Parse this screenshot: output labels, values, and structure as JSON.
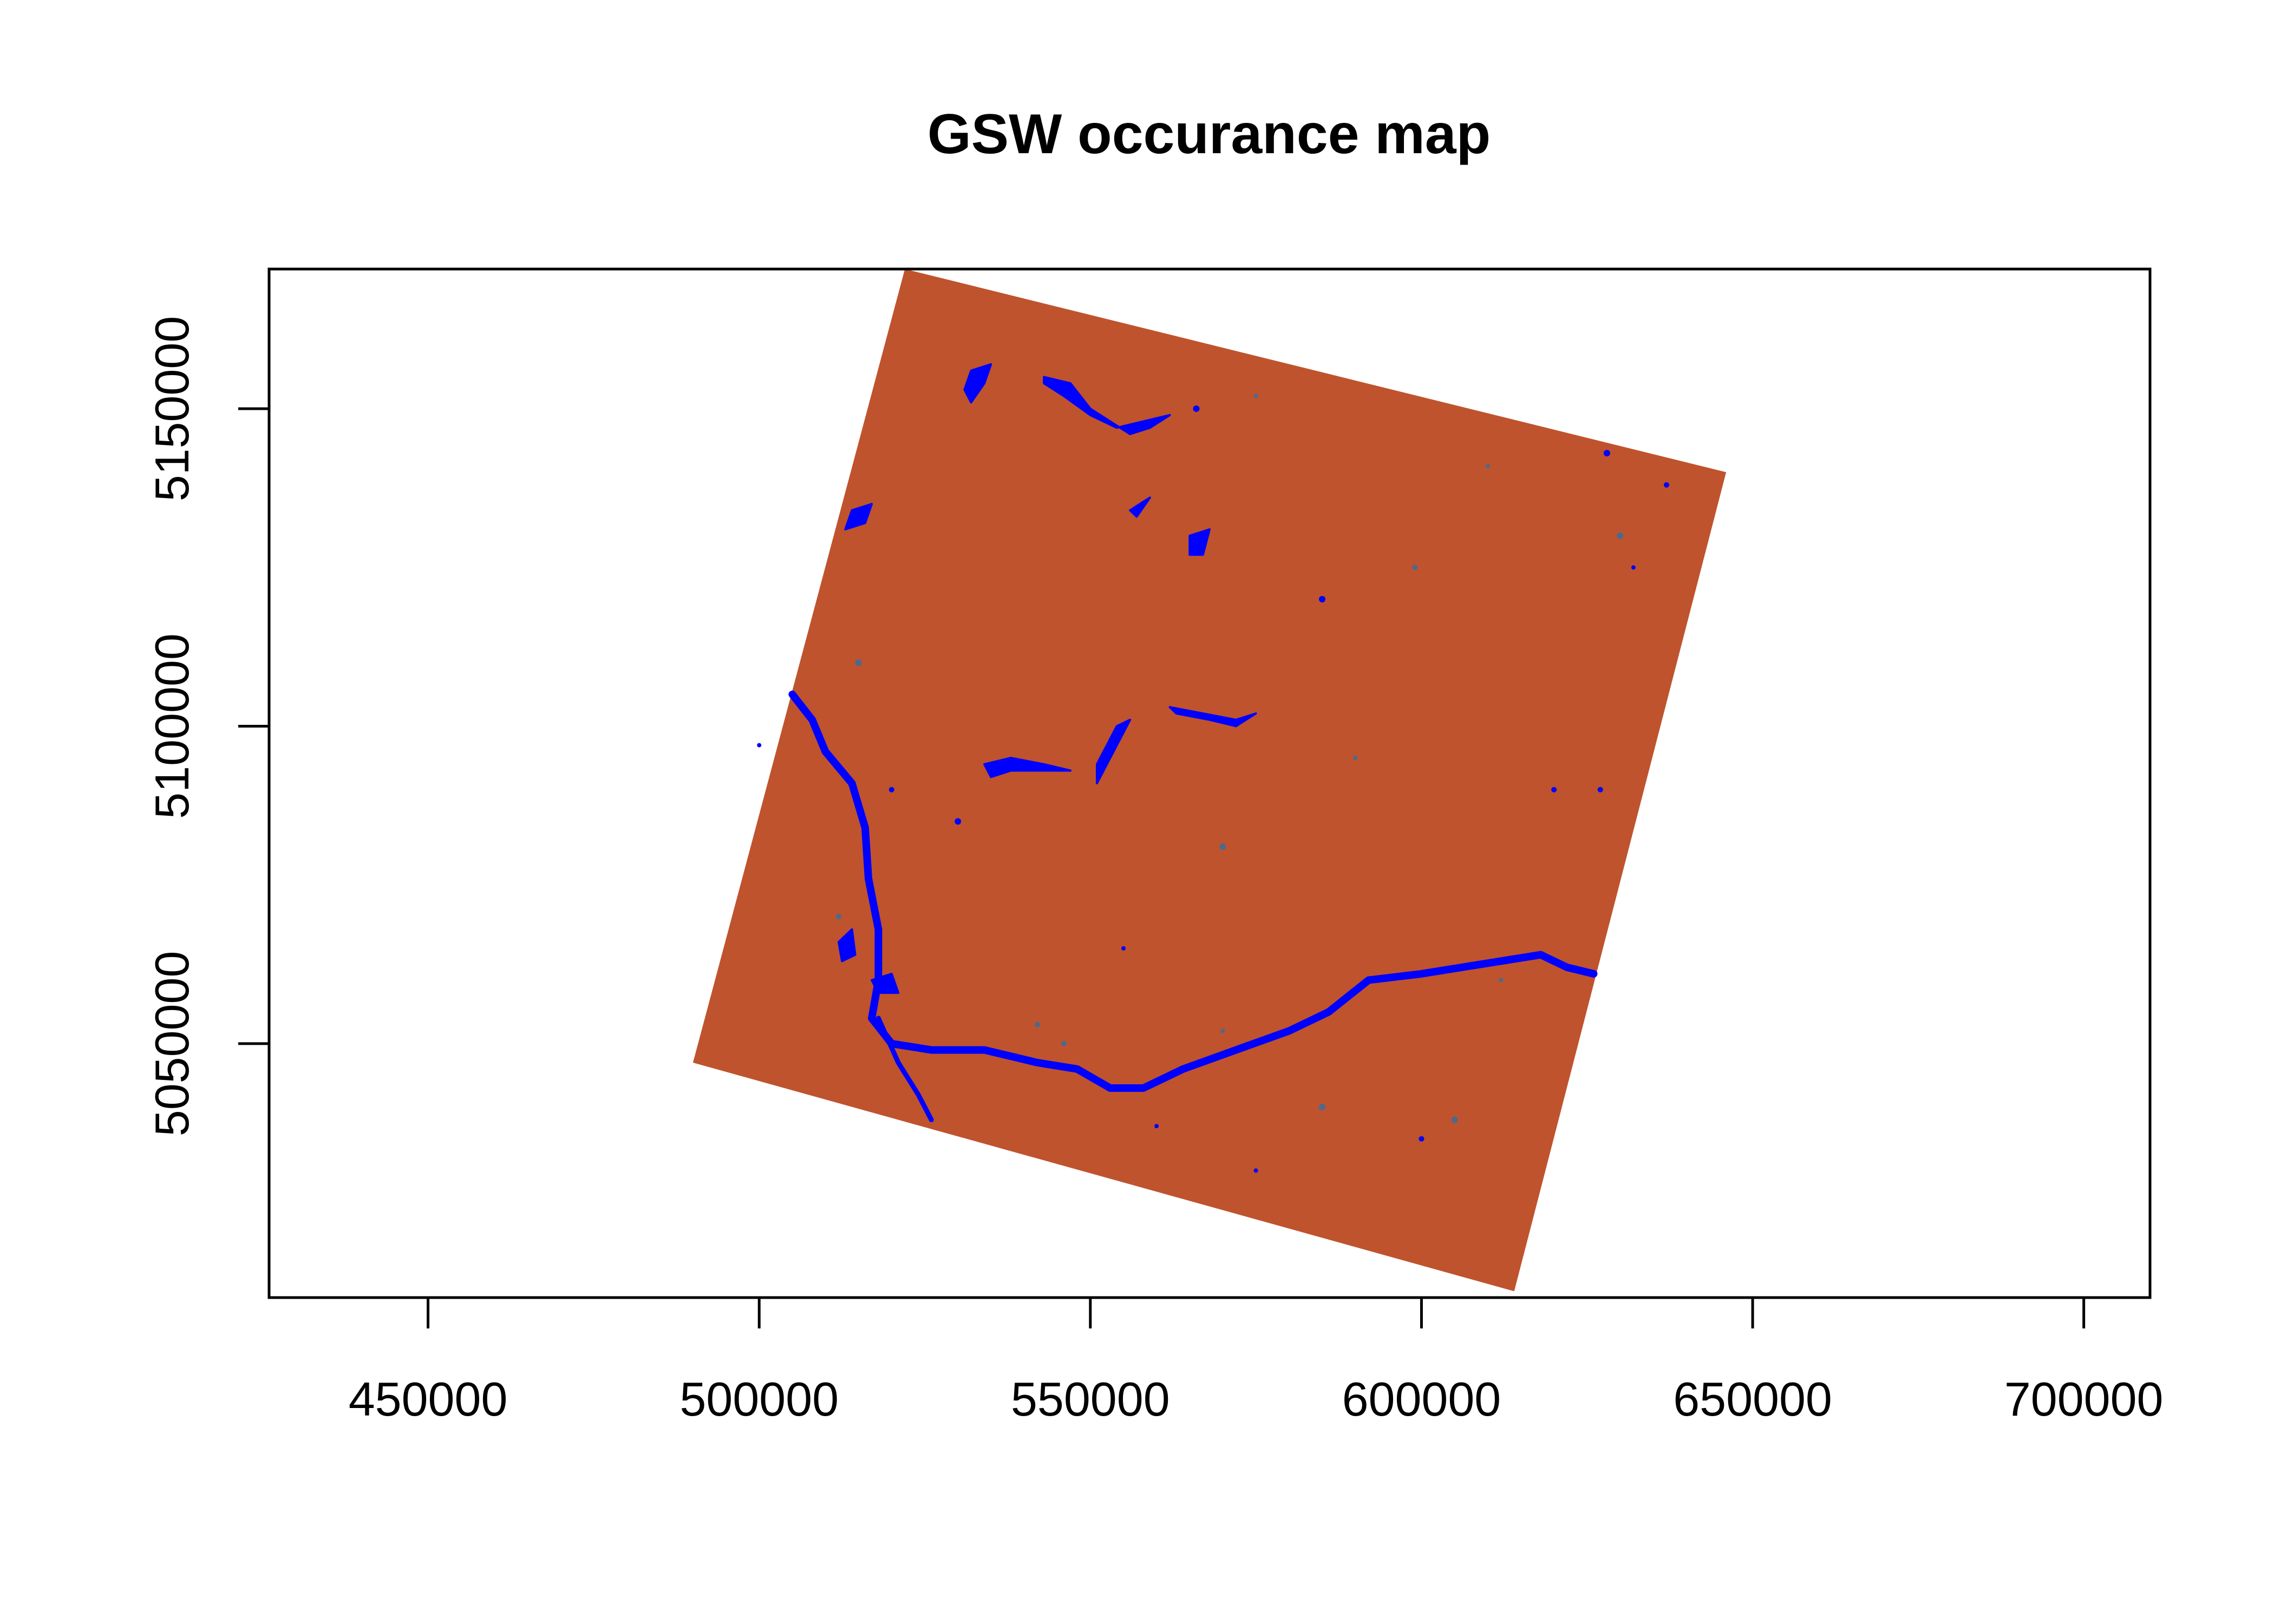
{
  "title": "GSW occurance map",
  "colors": {
    "land": "#BF532D",
    "water": "#0000FF",
    "water_partial": "#4A6A8E",
    "axis": "#000000",
    "background": "#FFFFFF"
  },
  "map_data": {
    "type": "raster",
    "xlim": [
      426000,
      710000
    ],
    "ylim": [
      5010000,
      5172000
    ],
    "x_ticks": [
      450000,
      500000,
      550000,
      600000,
      650000,
      700000
    ],
    "x_tick_labels": [
      "450000",
      "500000",
      "550000",
      "600000",
      "650000",
      "700000"
    ],
    "y_ticks": [
      5050000,
      5100000,
      5150000
    ],
    "y_tick_labels": [
      "5050000",
      "5100000",
      "5150000"
    ],
    "scene_corners": [
      [
        522000,
        5172000
      ],
      [
        646000,
        5140000
      ],
      [
        614000,
        5011000
      ],
      [
        490000,
        5047000
      ]
    ],
    "rivers": [
      [
        [
          505000,
          5105000
        ],
        [
          508000,
          5101000
        ],
        [
          510000,
          5096000
        ],
        [
          514000,
          5091000
        ],
        [
          516000,
          5084000
        ],
        [
          516500,
          5076000
        ],
        [
          518000,
          5068000
        ],
        [
          518000,
          5060000
        ],
        [
          517000,
          5054000
        ],
        [
          520000,
          5050000
        ],
        [
          526000,
          5049000
        ],
        [
          534000,
          5049000
        ],
        [
          542000,
          5047000
        ],
        [
          548000,
          5046000
        ],
        [
          553000,
          5043000
        ],
        [
          558000,
          5043000
        ],
        [
          564000,
          5046000
        ],
        [
          572000,
          5049000
        ],
        [
          580000,
          5052000
        ],
        [
          586000,
          5055000
        ],
        [
          592000,
          5060000
        ],
        [
          600000,
          5061000
        ],
        [
          606000,
          5062000
        ],
        [
          612000,
          5063000
        ],
        [
          618000,
          5064000
        ],
        [
          622000,
          5062000
        ],
        [
          626000,
          5061000
        ]
      ],
      [
        [
          518000,
          5054000
        ],
        [
          521000,
          5047000
        ],
        [
          524000,
          5042000
        ],
        [
          526000,
          5038000
        ]
      ]
    ],
    "lakes": [
      [
        [
          543000,
          5155000
        ],
        [
          547000,
          5154000
        ],
        [
          550000,
          5150000
        ],
        [
          553000,
          5148000
        ],
        [
          556000,
          5146000
        ],
        [
          559000,
          5147000
        ],
        [
          562000,
          5149000
        ],
        [
          558000,
          5148000
        ],
        [
          554000,
          5147000
        ],
        [
          550000,
          5149000
        ],
        [
          546000,
          5152000
        ],
        [
          543000,
          5154000
        ]
      ],
      [
        [
          532000,
          5156000
        ],
        [
          535000,
          5157000
        ],
        [
          534000,
          5154000
        ],
        [
          532000,
          5151000
        ],
        [
          531000,
          5153000
        ]
      ],
      [
        [
          534000,
          5094000
        ],
        [
          538000,
          5095000
        ],
        [
          543000,
          5094000
        ],
        [
          547000,
          5093000
        ],
        [
          543000,
          5093000
        ],
        [
          538000,
          5093000
        ],
        [
          535000,
          5092000
        ]
      ],
      [
        [
          551000,
          5091000
        ],
        [
          553000,
          5095000
        ],
        [
          556000,
          5101000
        ],
        [
          554000,
          5100000
        ],
        [
          551000,
          5094000
        ]
      ],
      [
        [
          562000,
          5103000
        ],
        [
          567000,
          5102000
        ],
        [
          572000,
          5101000
        ],
        [
          575000,
          5102000
        ],
        [
          572000,
          5100000
        ],
        [
          568000,
          5101000
        ],
        [
          563000,
          5102000
        ]
      ],
      [
        [
          517000,
          5060000
        ],
        [
          520000,
          5061000
        ],
        [
          521000,
          5058000
        ],
        [
          518000,
          5058000
        ]
      ],
      [
        [
          512000,
          5066000
        ],
        [
          514000,
          5068000
        ],
        [
          514500,
          5064000
        ],
        [
          512500,
          5063000
        ]
      ],
      [
        [
          514000,
          5134000
        ],
        [
          517000,
          5135000
        ],
        [
          516000,
          5132000
        ],
        [
          513000,
          5131000
        ]
      ],
      [
        [
          565000,
          5130000
        ],
        [
          568000,
          5131000
        ],
        [
          567000,
          5127000
        ],
        [
          565000,
          5127000
        ]
      ],
      [
        [
          556000,
          5134000
        ],
        [
          559000,
          5136000
        ],
        [
          557000,
          5133000
        ]
      ]
    ],
    "specks": [
      [
        570000,
        5052000
      ],
      [
        600000,
        5035000
      ],
      [
        605000,
        5038000
      ],
      [
        575000,
        5030000
      ],
      [
        546000,
        5050000
      ],
      [
        628000,
        5143000
      ],
      [
        610000,
        5141000
      ],
      [
        637000,
        5138000
      ],
      [
        630000,
        5130000
      ],
      [
        632000,
        5125000
      ],
      [
        599000,
        5125000
      ],
      [
        585000,
        5120000
      ],
      [
        590000,
        5095000
      ],
      [
        620000,
        5090000
      ],
      [
        585000,
        5040000
      ],
      [
        560000,
        5037000
      ],
      [
        542000,
        5053000
      ],
      [
        566000,
        5150000
      ],
      [
        575000,
        5152000
      ],
      [
        520000,
        5090000
      ],
      [
        515000,
        5110000
      ],
      [
        500000,
        5097000
      ],
      [
        512000,
        5070000
      ],
      [
        530000,
        5085000
      ],
      [
        612000,
        5060000
      ],
      [
        627000,
        5090000
      ],
      [
        570000,
        5081000
      ],
      [
        555000,
        5065000
      ]
    ]
  }
}
